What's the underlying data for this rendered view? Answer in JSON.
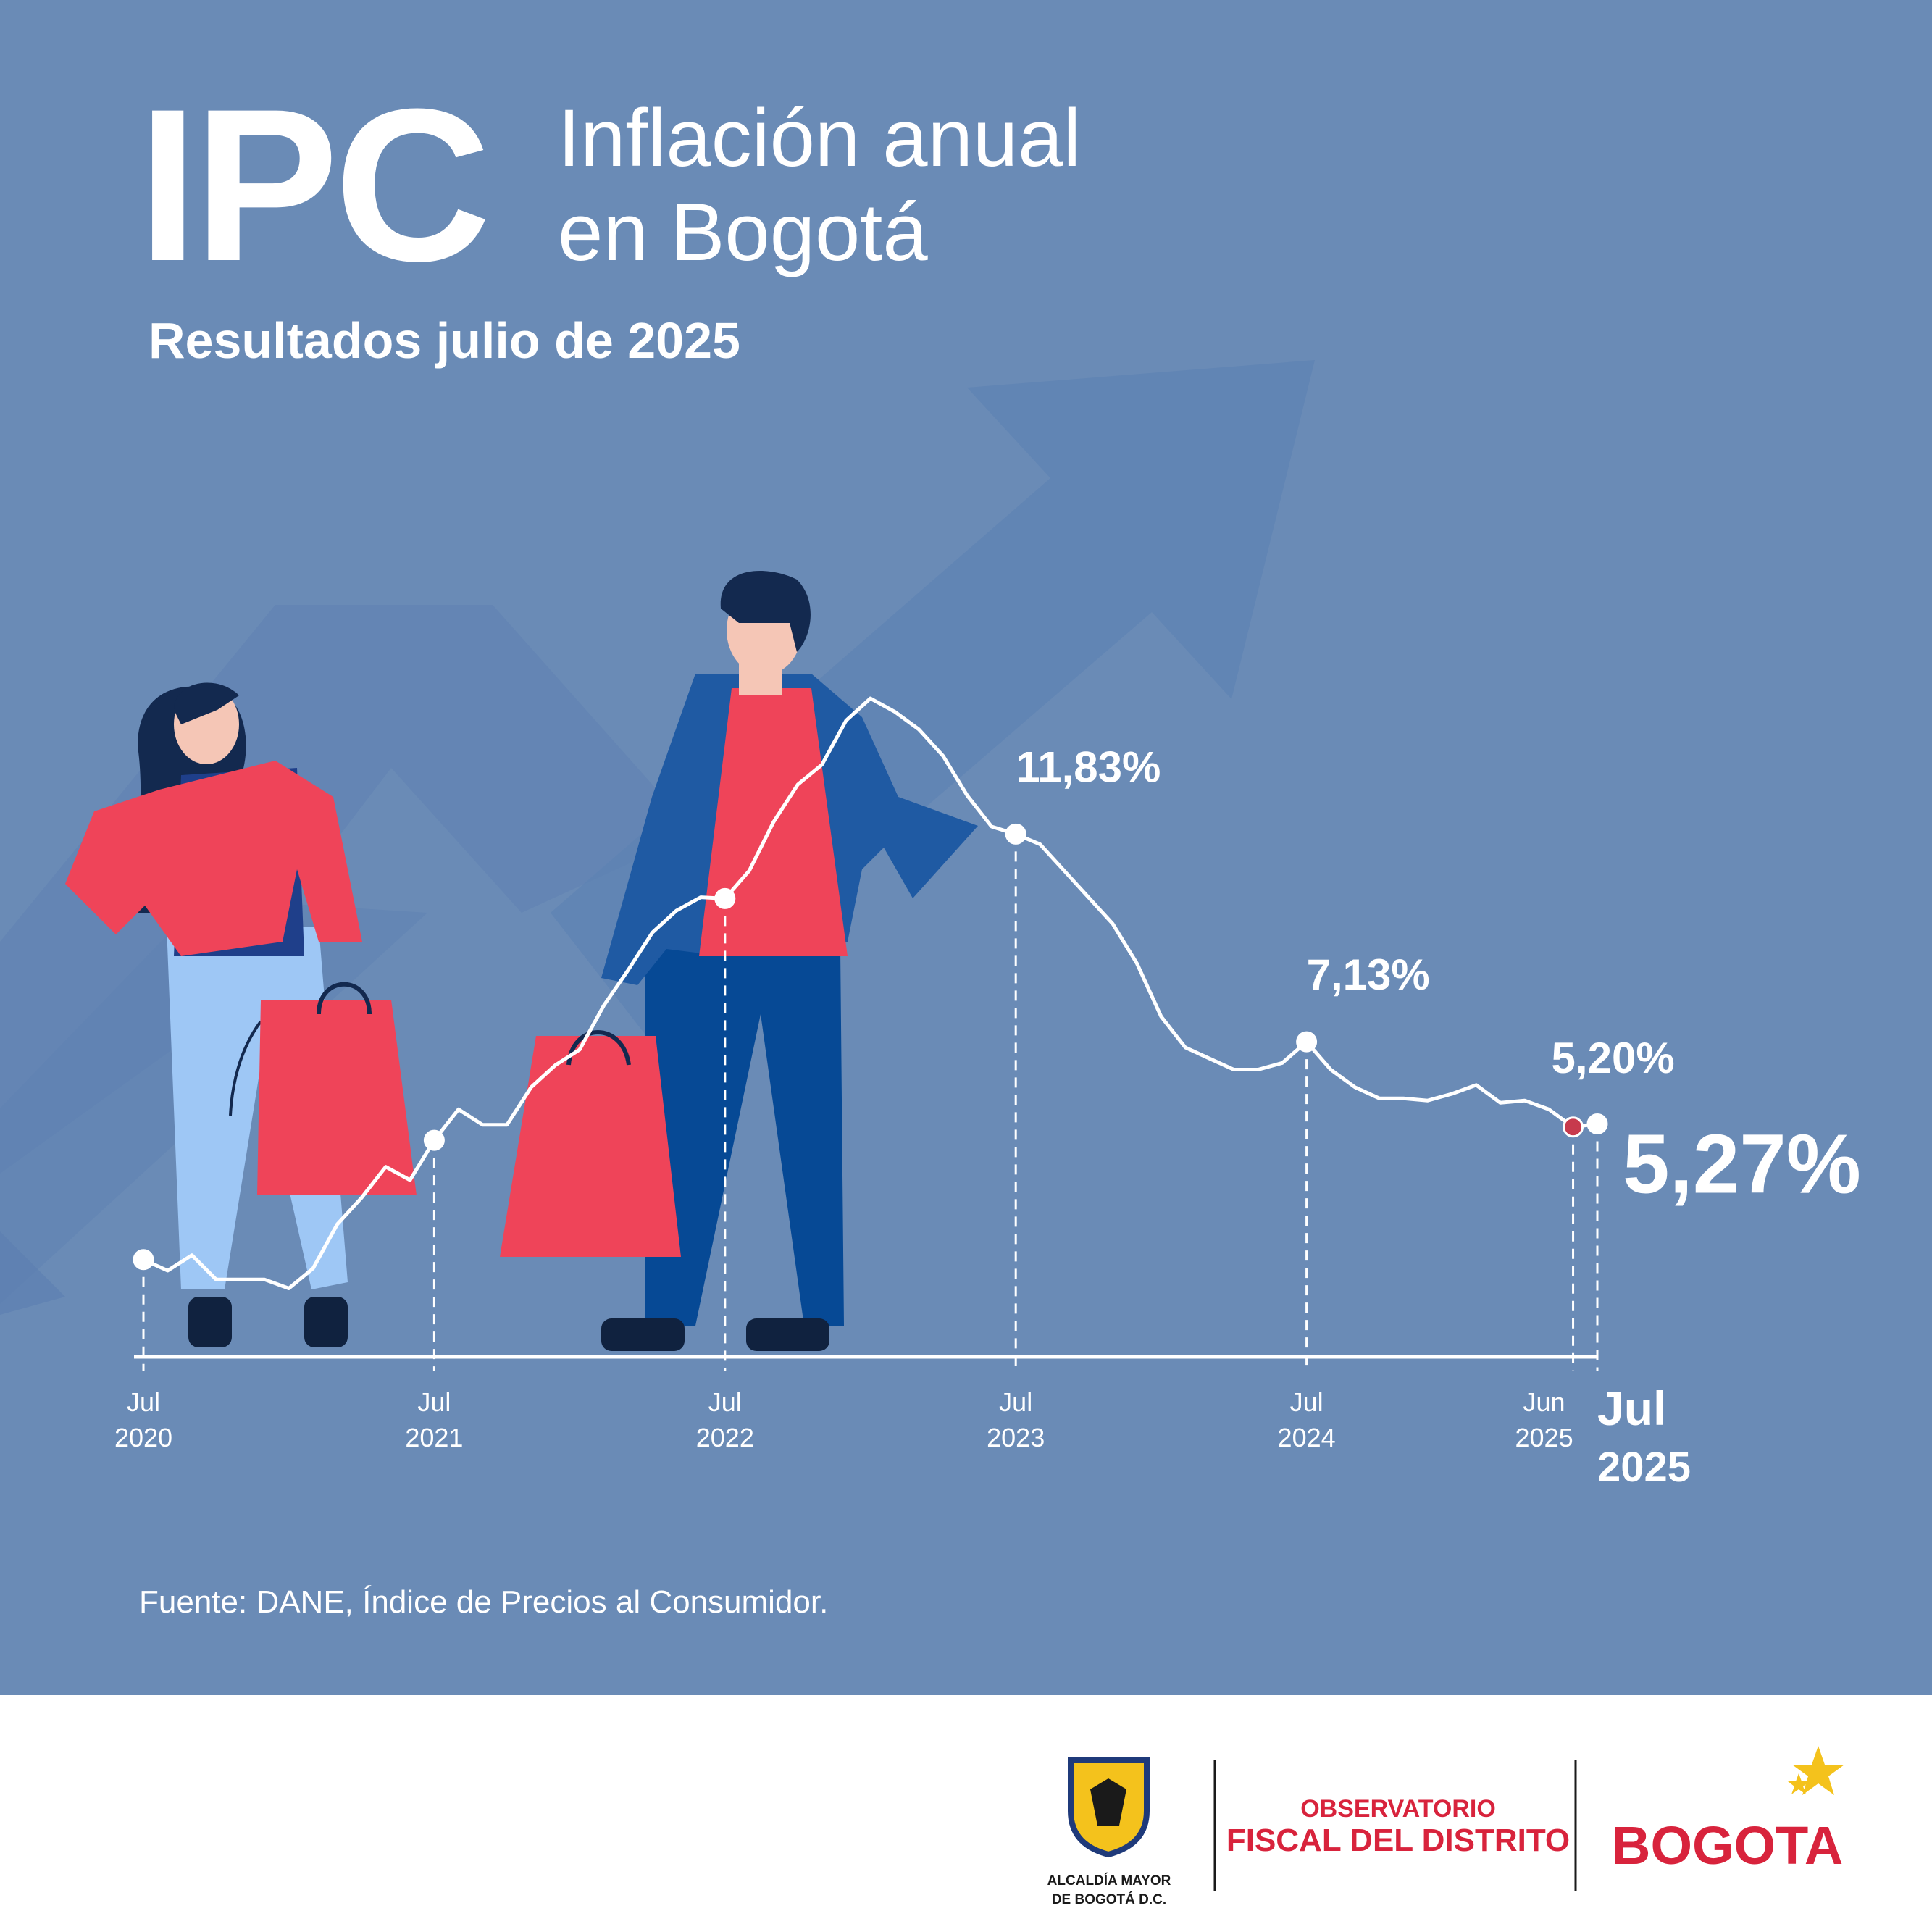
{
  "header": {
    "title_ipc": "IPC",
    "title_line1": "Inflación anual",
    "title_line2": "en Bogotá",
    "subtitle": "Resultados julio de 2025"
  },
  "colors": {
    "background": "#6a8bb6",
    "footer": "#ffffff",
    "accent_red": "#f2404f",
    "highlight_point": "#c73a4d",
    "navy": "#1f4f8f"
  },
  "chart_data": {
    "type": "line",
    "x": [
      "2020-07",
      "2020-08",
      "2020-09",
      "2020-10",
      "2020-11",
      "2020-12",
      "2021-01",
      "2021-02",
      "2021-03",
      "2021-04",
      "2021-05",
      "2021-06",
      "2021-07",
      "2021-08",
      "2021-09",
      "2021-10",
      "2021-11",
      "2021-12",
      "2022-01",
      "2022-02",
      "2022-03",
      "2022-04",
      "2022-05",
      "2022-06",
      "2022-07",
      "2022-08",
      "2022-09",
      "2022-10",
      "2022-11",
      "2022-12",
      "2023-01",
      "2023-02",
      "2023-03",
      "2023-04",
      "2023-05",
      "2023-06",
      "2023-07",
      "2023-08",
      "2023-09",
      "2023-10",
      "2023-11",
      "2023-12",
      "2024-01",
      "2024-02",
      "2024-03",
      "2024-04",
      "2024-05",
      "2024-06",
      "2024-07",
      "2024-08",
      "2024-09",
      "2024-10",
      "2024-11",
      "2024-12",
      "2025-01",
      "2025-02",
      "2025-03",
      "2025-04",
      "2025-05",
      "2025-06",
      "2025-07"
    ],
    "values": [
      2.2,
      1.95,
      2.3,
      1.75,
      1.75,
      1.75,
      1.55,
      2.0,
      3.0,
      3.6,
      4.3,
      4.0,
      4.9,
      5.6,
      5.25,
      5.25,
      6.1,
      6.6,
      6.95,
      7.95,
      8.75,
      9.6,
      10.1,
      10.4,
      10.37,
      11.0,
      12.1,
      12.95,
      13.4,
      14.4,
      14.9,
      14.6,
      14.2,
      13.6,
      12.7,
      12.0,
      11.83,
      11.6,
      11.0,
      10.4,
      9.8,
      8.9,
      7.7,
      7.0,
      6.75,
      6.5,
      6.5,
      6.65,
      7.13,
      6.5,
      6.1,
      5.85,
      5.85,
      5.8,
      5.95,
      6.15,
      5.75,
      5.8,
      5.6,
      5.2,
      5.27
    ],
    "tick_labels": [
      {
        "x": "2020-07",
        "line1": "Jul",
        "line2": "2020"
      },
      {
        "x": "2021-07",
        "line1": "Jul",
        "line2": "2021"
      },
      {
        "x": "2022-07",
        "line1": "Jul",
        "line2": "2022"
      },
      {
        "x": "2023-07",
        "line1": "Jul",
        "line2": "2023"
      },
      {
        "x": "2024-07",
        "line1": "Jul",
        "line2": "2024"
      },
      {
        "x": "2025-06",
        "line1": "Jun",
        "line2": "2025"
      },
      {
        "x": "2025-07",
        "line1": "Jul",
        "line2": "2025"
      }
    ],
    "annotations": [
      {
        "x": "2023-07",
        "label": "11,83%"
      },
      {
        "x": "2024-07",
        "label": "7,13%"
      },
      {
        "x": "2025-06",
        "label": "5,20%"
      },
      {
        "x": "2025-07",
        "label": "5,27%"
      }
    ],
    "marked_points": [
      "2020-07",
      "2021-07",
      "2022-07",
      "2023-07",
      "2024-07",
      "2025-06",
      "2025-07"
    ],
    "highlight_point": "2025-06",
    "ylim": [
      0,
      16
    ],
    "grid": false,
    "legend": "none"
  },
  "source": "Fuente:  DANE, Índice de Precios al Consumidor.",
  "footer": {
    "alcaldia_line1": "ALCALDÍA MAYOR",
    "alcaldia_line2": "DE BOGOTÁ D.C.",
    "observatorio_line1": "OBSERVATORIO",
    "observatorio_line2": "FISCAL DEL DISTRITO",
    "bogota_logo": "BOGOTA"
  },
  "icons": [
    "shield-crest-icon",
    "star-icon"
  ]
}
